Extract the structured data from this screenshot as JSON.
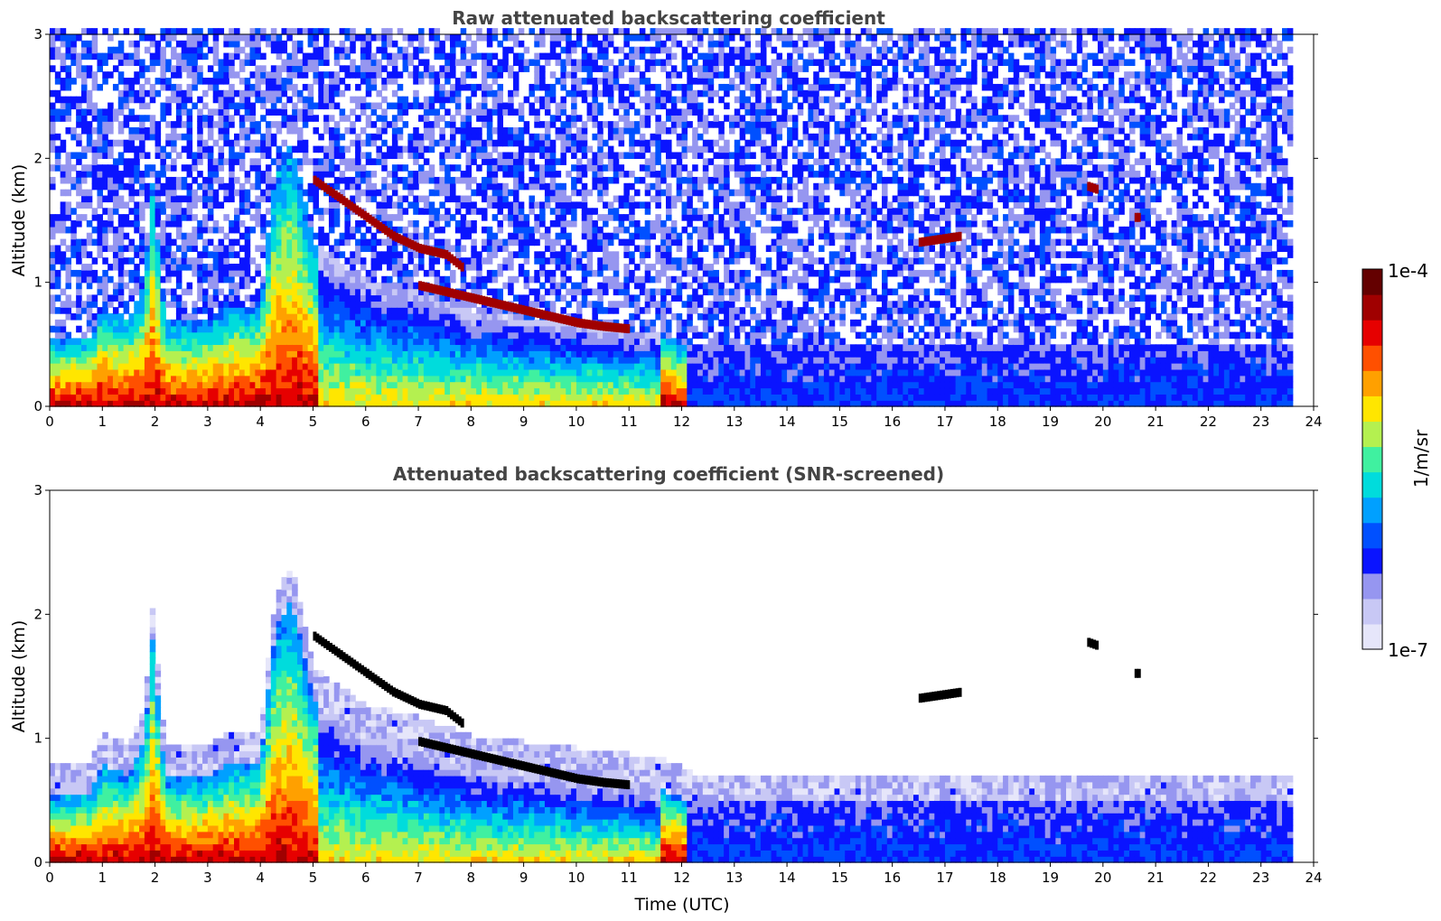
{
  "chart_data": [
    {
      "type": "heatmap",
      "title": "Raw attenuated backscattering coefficient",
      "xlabel": "",
      "ylabel": "Altitude (km)",
      "xlim": [
        0,
        24
      ],
      "ylim": [
        0,
        3
      ],
      "xticks": [
        0,
        1,
        2,
        3,
        4,
        5,
        6,
        7,
        8,
        9,
        10,
        11,
        12,
        13,
        14,
        15,
        16,
        17,
        18,
        19,
        20,
        21,
        22,
        23,
        24
      ],
      "yticks": [
        0,
        1,
        2,
        3
      ],
      "data_end_time": 23.55,
      "layers": [
        {
          "feature": "boundary layer aerosol top",
          "time": [
            0,
            0.8,
            1.0,
            1.5,
            1.8,
            1.95,
            2.2,
            3.0,
            3.5,
            4.0,
            4.3,
            4.6,
            5.0,
            6.0,
            7.0,
            8.0,
            9.0,
            10.0,
            11.0,
            11.7,
            12.2
          ],
          "top_km": [
            0.52,
            0.55,
            0.78,
            0.68,
            0.95,
            1.8,
            0.65,
            0.66,
            0.8,
            0.8,
            1.9,
            2.1,
            1.3,
            1.0,
            0.9,
            0.75,
            0.7,
            0.65,
            0.6,
            0.55,
            0.45
          ]
        },
        {
          "feature": "elevated layer",
          "time": [
            5.0,
            5.5,
            6.0,
            6.5,
            7.0,
            7.5,
            7.8
          ],
          "altitude_km": [
            1.8,
            1.65,
            1.5,
            1.35,
            1.25,
            1.2,
            1.1
          ]
        },
        {
          "feature": "descending layer",
          "time": [
            7.0,
            8.0,
            9.0,
            10.0,
            10.5,
            11.0
          ],
          "altitude_km": [
            0.95,
            0.85,
            0.75,
            0.65,
            0.62,
            0.6
          ]
        },
        {
          "feature": "cloud",
          "time": [
            16.5,
            17.3
          ],
          "altitude_km": [
            1.3,
            1.35
          ]
        },
        {
          "feature": "cloud",
          "time": [
            19.7,
            19.9
          ],
          "altitude_km": [
            1.75,
            1.72
          ]
        },
        {
          "feature": "cloud",
          "time": [
            20.6,
            20.7
          ],
          "altitude_km": [
            1.5,
            1.5
          ]
        }
      ]
    },
    {
      "type": "heatmap",
      "title": "Attenuated backscattering coefficient (SNR-screened)",
      "xlabel": "Time (UTC)",
      "ylabel": "Altitude (km)",
      "xlim": [
        0,
        24
      ],
      "ylim": [
        0,
        3
      ],
      "xticks": [
        0,
        1,
        2,
        3,
        4,
        5,
        6,
        7,
        8,
        9,
        10,
        11,
        12,
        13,
        14,
        15,
        16,
        17,
        18,
        19,
        20,
        21,
        22,
        23,
        24
      ],
      "yticks": [
        0,
        1,
        2,
        3
      ],
      "data_end_time": 23.55
    }
  ],
  "colorbar": {
    "label": "1/m/sr",
    "min_label": "1e-7",
    "max_label": "1e-4",
    "scale": "log",
    "colors": [
      "#e6e6fa",
      "#c8c8f5",
      "#9696f0",
      "#0a14ff",
      "#0050ff",
      "#00a0ff",
      "#00dcdc",
      "#40f0a0",
      "#b4f050",
      "#ffe600",
      "#ffa000",
      "#ff5000",
      "#e60000",
      "#a00000",
      "#640000"
    ]
  }
}
